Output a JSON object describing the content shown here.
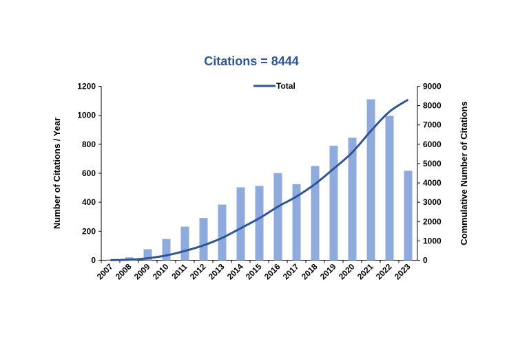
{
  "chart_data": {
    "type": "bar+line",
    "title": "Citations = 8444",
    "categories": [
      "2007",
      "2008",
      "2009",
      "2010",
      "2011",
      "2012",
      "2013",
      "2014",
      "2015",
      "2016",
      "2017",
      "2018",
      "2019",
      "2020",
      "2021",
      "2022",
      "2023"
    ],
    "bar_values": [
      5,
      20,
      76,
      147,
      232,
      291,
      384,
      503,
      513,
      601,
      525,
      650,
      790,
      845,
      1110,
      996,
      617
    ],
    "line_series": {
      "name": "Total",
      "axis": "right"
    },
    "ylabel": "Number of Citations / Year",
    "ylabel_right": "Commulative Number of Citations",
    "ylim": [
      0,
      1200
    ],
    "yticks": [
      0,
      200,
      400,
      600,
      800,
      1000,
      1200
    ],
    "ylim_right": [
      0,
      9000
    ],
    "yticks_right": [
      0,
      1000,
      2000,
      3000,
      4000,
      5000,
      6000,
      7000,
      8000,
      9000
    ],
    "legend": "top-center",
    "grid": false,
    "colors": {
      "bar": "#8faadc",
      "line": "#2f5597",
      "title": "#2f5597"
    }
  }
}
